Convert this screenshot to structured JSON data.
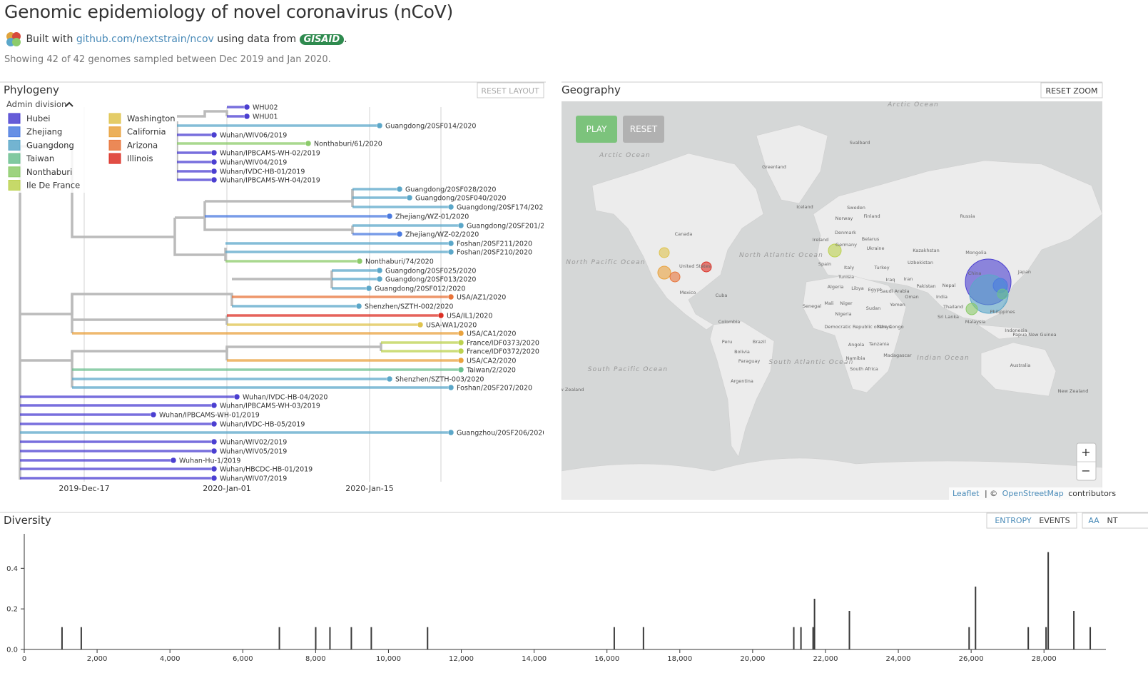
{
  "header": {
    "title": "Genomic epidemiology of novel coronavirus (nCoV)",
    "built_with": "Built with",
    "repo_link": "github.com/nextstrain/ncov",
    "using_data_from": "using data from",
    "gisaid": "GISAID",
    "period": ".",
    "summary": "Showing 42 of 42 genomes sampled between Dec 2019 and Jan 2020."
  },
  "phylogeny": {
    "title": "Phylogeny",
    "reset_layout": "RESET LAYOUT",
    "legend": {
      "title": "Admin division",
      "entries": [
        {
          "name": "Hubei",
          "color": "#4b3fd1"
        },
        {
          "name": "Zhejiang",
          "color": "#4b7be0"
        },
        {
          "name": "Guangdong",
          "color": "#5ba7c9"
        },
        {
          "name": "Taiwan",
          "color": "#6bbf8f"
        },
        {
          "name": "Nonthaburi",
          "color": "#8ccb6a"
        },
        {
          "name": "Ile De France",
          "color": "#bcd24f"
        },
        {
          "name": "Washington",
          "color": "#dfc34d"
        },
        {
          "name": "California",
          "color": "#e9a23d"
        },
        {
          "name": "Arizona",
          "color": "#e8743a"
        },
        {
          "name": "Illinois",
          "color": "#dc2f24"
        }
      ]
    },
    "tips": [
      {
        "label": "WHU02",
        "color": "#4b3fd1"
      },
      {
        "label": "WHU01",
        "color": "#4b3fd1"
      },
      {
        "label": "Guangdong/20SF014/2020",
        "color": "#5ba7c9"
      },
      {
        "label": "Wuhan/WIV06/2019",
        "color": "#4b3fd1"
      },
      {
        "label": "Nonthaburi/61/2020",
        "color": "#8ccb6a"
      },
      {
        "label": "Wuhan/IPBCAMS-WH-02/2019",
        "color": "#4b3fd1"
      },
      {
        "label": "Wuhan/WIV04/2019",
        "color": "#4b3fd1"
      },
      {
        "label": "Wuhan/IVDC-HB-01/2019",
        "color": "#4b3fd1"
      },
      {
        "label": "Wuhan/IPBCAMS-WH-04/2019",
        "color": "#4b3fd1"
      },
      {
        "label": "Guangdong/20SF028/2020",
        "color": "#5ba7c9"
      },
      {
        "label": "Guangdong/20SF040/2020",
        "color": "#5ba7c9"
      },
      {
        "label": "Guangdong/20SF174/2020",
        "color": "#5ba7c9"
      },
      {
        "label": "Zhejiang/WZ-01/2020",
        "color": "#4b7be0"
      },
      {
        "label": "Guangdong/20SF201/2020",
        "color": "#5ba7c9"
      },
      {
        "label": "Zhejiang/WZ-02/2020",
        "color": "#4b7be0"
      },
      {
        "label": "Foshan/20SF211/2020",
        "color": "#5ba7c9"
      },
      {
        "label": "Foshan/20SF210/2020",
        "color": "#5ba7c9"
      },
      {
        "label": "Nonthaburi/74/2020",
        "color": "#8ccb6a"
      },
      {
        "label": "Guangdong/20SF025/2020",
        "color": "#5ba7c9"
      },
      {
        "label": "Guangdong/20SF013/2020",
        "color": "#5ba7c9"
      },
      {
        "label": "Guangdong/20SF012/2020",
        "color": "#5ba7c9"
      },
      {
        "label": "USA/AZ1/2020",
        "color": "#e8743a"
      },
      {
        "label": "Shenzhen/SZTH-002/2020",
        "color": "#5ba7c9"
      },
      {
        "label": "USA/IL1/2020",
        "color": "#dc2f24"
      },
      {
        "label": "USA-WA1/2020",
        "color": "#dfc34d"
      },
      {
        "label": "USA/CA1/2020",
        "color": "#e9a23d"
      },
      {
        "label": "France/IDF0373/2020",
        "color": "#bcd24f"
      },
      {
        "label": "France/IDF0372/2020",
        "color": "#bcd24f"
      },
      {
        "label": "USA/CA2/2020",
        "color": "#e9a23d"
      },
      {
        "label": "Taiwan/2/2020",
        "color": "#6bbf8f"
      },
      {
        "label": "Shenzhen/SZTH-003/2020",
        "color": "#5ba7c9"
      },
      {
        "label": "Foshan/20SF207/2020",
        "color": "#5ba7c9"
      },
      {
        "label": "Wuhan/IVDC-HB-04/2020",
        "color": "#4b3fd1"
      },
      {
        "label": "Wuhan/IPBCAMS-WH-03/2019",
        "color": "#4b3fd1"
      },
      {
        "label": "Wuhan/IPBCAMS-WH-01/2019",
        "color": "#4b3fd1"
      },
      {
        "label": "Wuhan/IVDC-HB-05/2019",
        "color": "#4b3fd1"
      },
      {
        "label": "Guangzhou/20SF206/2020",
        "color": "#5ba7c9"
      },
      {
        "label": "Wuhan/WIV02/2019",
        "color": "#4b3fd1"
      },
      {
        "label": "Wuhan/WIV05/2019",
        "color": "#4b3fd1"
      },
      {
        "label": "Wuhan-Hu-1/2019",
        "color": "#4b3fd1"
      },
      {
        "label": "Wuhan/HBCDC-HB-01/2019",
        "color": "#4b3fd1"
      },
      {
        "label": "Wuhan/WIV07/2019",
        "color": "#4b3fd1"
      }
    ],
    "x_axis_labels": [
      "2019-Dec-17",
      "2020-Jan-01",
      "2020-Jan-15"
    ]
  },
  "geography": {
    "title": "Geography",
    "reset_zoom": "RESET ZOOM",
    "play": "PLAY",
    "reset": "RESET",
    "zoom_in": "+",
    "zoom_out": "−",
    "map_labels": [
      "Arctic Ocean",
      "Arctic Ocean",
      "Greenland",
      "Svalbard",
      "Iceland",
      "Sweden",
      "Norway",
      "Finland",
      "Russia",
      "Canada",
      "Denmark",
      "Ireland",
      "Germany",
      "Belarus",
      "Ukraine",
      "Kazakhstan",
      "Mongolia",
      "North Pacific Ocean",
      "North Atlantic Ocean",
      "United States",
      "Spain",
      "Italy",
      "Turkey",
      "Uzbekistan",
      "China",
      "Japan",
      "Tunisia",
      "Iraq",
      "Iran",
      "Mexico",
      "Cuba",
      "Algeria",
      "Libya",
      "Egypt",
      "Saudi Arabia",
      "Oman",
      "Pakistan",
      "Nepal",
      "India",
      "Mali",
      "Niger",
      "Senegal",
      "Sudan",
      "Yemen",
      "Nigeria",
      "Thailand",
      "Philippines",
      "Colombia",
      "Sri Lanka",
      "Malaysia",
      "Democratic Republic of the Congo",
      "Kenya",
      "Indonesia",
      "Papua New Guinea",
      "Peru",
      "Brazil",
      "Angola",
      "Bolivia",
      "Tanzania",
      "Madagascar",
      "Namibia",
      "Paraguay",
      "South Africa",
      "Australia",
      "South Pacific Ocean",
      "South Atlantic Ocean",
      "Indian Ocean",
      "Argentina",
      "New Zealand",
      "New Zealand"
    ],
    "attribution": {
      "leaflet": "Leaflet",
      "separator": "| ©",
      "osm": "OpenStreetMap",
      "contributors": "contributors"
    }
  },
  "diversity": {
    "title": "Diversity",
    "entropy": "ENTROPY",
    "events": "EVENTS",
    "aa": "AA",
    "nt": "NT"
  },
  "chart_data": {
    "type": "bar",
    "color": "#3a3a3a",
    "x": [
      1037,
      1565,
      7005,
      8003,
      8394,
      8981,
      9529,
      11074,
      16200,
      17002,
      21130,
      21327,
      21660,
      21699,
      22657,
      25944,
      26120,
      27568,
      28057,
      28116,
      28820,
      29270
    ],
    "values": [
      0.11,
      0.11,
      0.11,
      0.11,
      0.11,
      0.11,
      0.11,
      0.11,
      0.11,
      0.11,
      0.11,
      0.11,
      0.11,
      0.25,
      0.19,
      0.11,
      0.31,
      0.11,
      0.11,
      0.48,
      0.19,
      0.11
    ],
    "xlim": [
      0,
      29700
    ],
    "ylim": [
      0,
      0.57
    ],
    "xticks": [
      0,
      {
        "value": 2000,
        "label": "2,000"
      },
      {
        "value": 4000,
        "label": "4,000"
      },
      {
        "value": 6000,
        "label": "6,000"
      },
      {
        "value": 8000,
        "label": "8,000"
      },
      {
        "value": 10000,
        "label": "10,000"
      },
      {
        "value": 12000,
        "label": "12,000"
      },
      {
        "value": 14000,
        "label": "14,000"
      },
      {
        "value": 16000,
        "label": "16,000"
      },
      {
        "value": 18000,
        "label": "18,000"
      },
      {
        "value": 20000,
        "label": "20,000"
      },
      {
        "value": 22000,
        "label": "22,000"
      },
      {
        "value": 24000,
        "label": "24,000"
      },
      {
        "value": 26000,
        "label": "26,000"
      },
      {
        "value": 28000,
        "label": "28,000"
      }
    ],
    "yticks": [
      {
        "value": 0,
        "label": "0.0"
      },
      0.2,
      0.4
    ]
  }
}
